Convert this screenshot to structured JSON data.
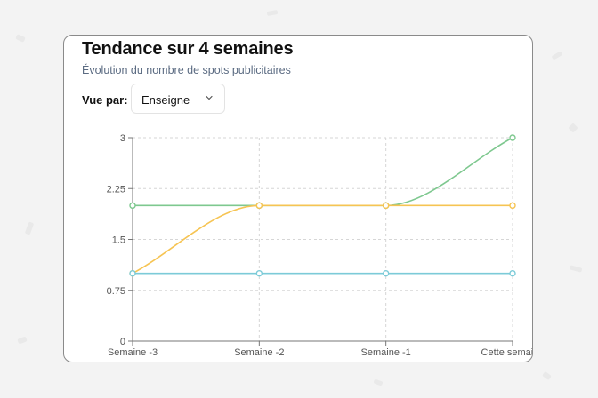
{
  "card": {
    "title": "Tendance sur 4 semaines",
    "subtitle": "Évolution du nombre de spots publicitaires"
  },
  "filter": {
    "label": "Vue par:",
    "selected": "Enseigne"
  },
  "icons": {
    "dropdown": "chevron-down-icon"
  },
  "chart_data": {
    "type": "line",
    "x": [
      "Semaine -3",
      "Semaine -2",
      "Semaine -1",
      "Cette semaine"
    ],
    "y_ticks": [
      "0",
      "0.75",
      "1.5",
      "2.25",
      "3"
    ],
    "ylim": [
      0,
      3
    ],
    "grid": true,
    "legend": "none",
    "series": [
      {
        "color": "#7ec88f",
        "values": [
          2,
          2,
          2,
          3
        ]
      },
      {
        "color": "#f6c453",
        "values": [
          1,
          2,
          2,
          2
        ]
      },
      {
        "color": "#7ccbd8",
        "values": [
          1,
          1,
          1,
          1
        ]
      }
    ]
  }
}
